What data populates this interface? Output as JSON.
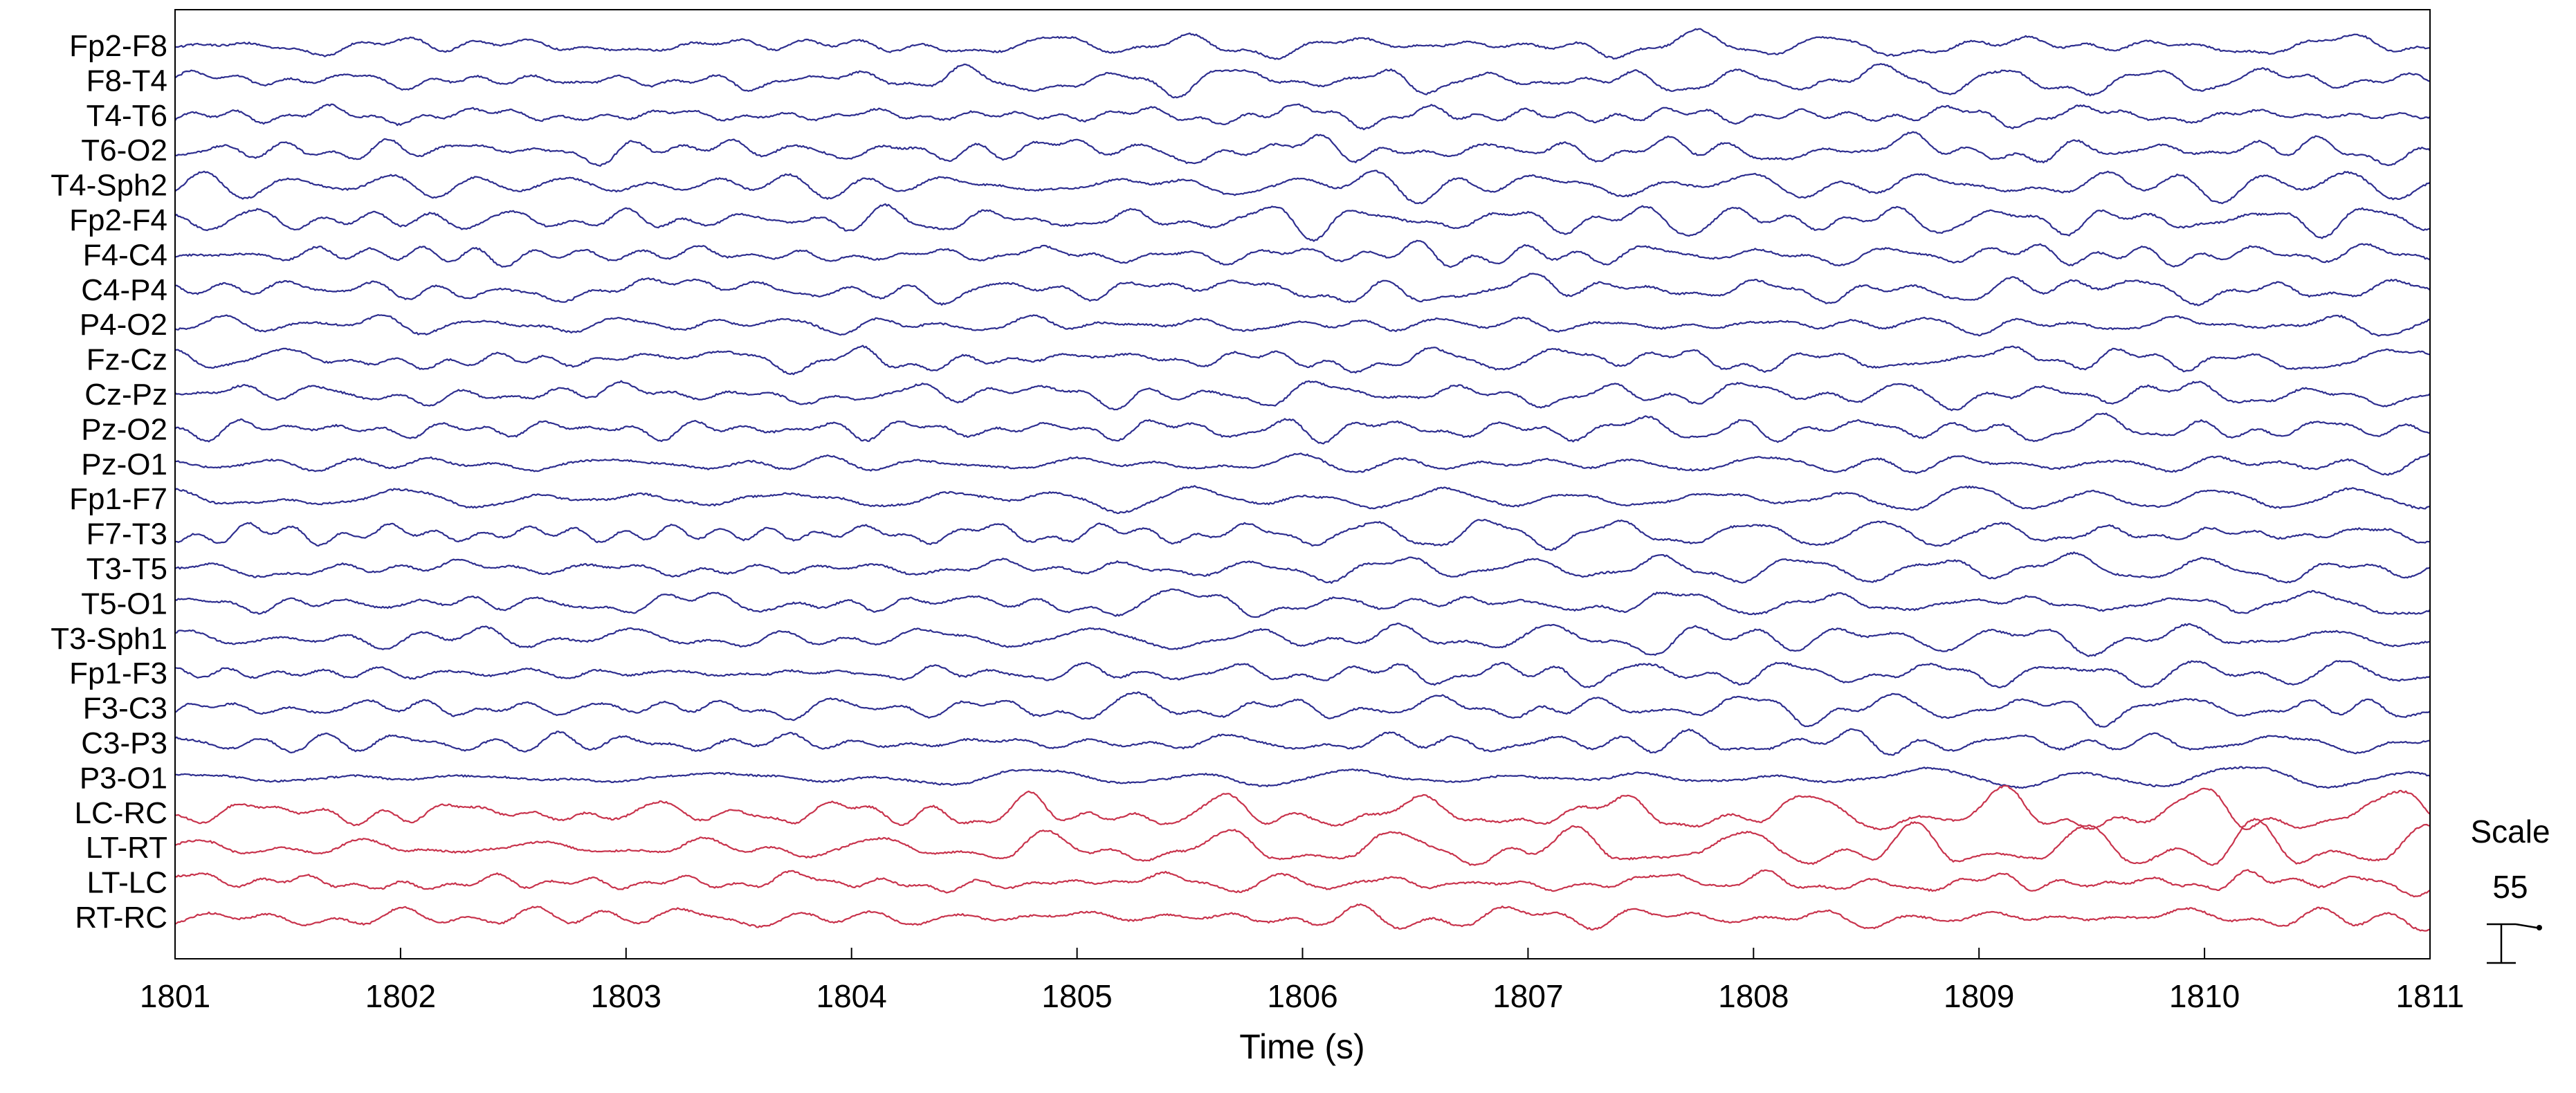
{
  "chart_data": {
    "type": "line",
    "title": "",
    "xlabel": "Time (s)",
    "ylabel": "",
    "xlim": [
      1801,
      1811
    ],
    "x_ticks": [
      "1801",
      "1802",
      "1803",
      "1804",
      "1805",
      "1806",
      "1807",
      "1808",
      "1809",
      "1810",
      "1811"
    ],
    "grid": false,
    "legend": "none",
    "scale": {
      "label": "Scale",
      "value": "55"
    },
    "colors": {
      "eeg": "#2e2e8f",
      "derived": "#c8334c",
      "frame": "#000000"
    },
    "channels": [
      {
        "name": "Fp2-F8",
        "group": "eeg"
      },
      {
        "name": "F8-T4",
        "group": "eeg"
      },
      {
        "name": "T4-T6",
        "group": "eeg"
      },
      {
        "name": "T6-O2",
        "group": "eeg"
      },
      {
        "name": "T4-Sph2",
        "group": "eeg"
      },
      {
        "name": "Fp2-F4",
        "group": "eeg"
      },
      {
        "name": "F4-C4",
        "group": "eeg"
      },
      {
        "name": "C4-P4",
        "group": "eeg"
      },
      {
        "name": "P4-O2",
        "group": "eeg"
      },
      {
        "name": "Fz-Cz",
        "group": "eeg"
      },
      {
        "name": "Cz-Pz",
        "group": "eeg"
      },
      {
        "name": "Pz-O2",
        "group": "eeg"
      },
      {
        "name": "Pz-O1",
        "group": "eeg"
      },
      {
        "name": "Fp1-F7",
        "group": "eeg"
      },
      {
        "name": "F7-T3",
        "group": "eeg"
      },
      {
        "name": "T3-T5",
        "group": "eeg"
      },
      {
        "name": "T5-O1",
        "group": "eeg"
      },
      {
        "name": "T3-Sph1",
        "group": "eeg"
      },
      {
        "name": "Fp1-F3",
        "group": "eeg"
      },
      {
        "name": "F3-C3",
        "group": "eeg"
      },
      {
        "name": "C3-P3",
        "group": "eeg"
      },
      {
        "name": "P3-O1",
        "group": "eeg"
      },
      {
        "name": "LC-RC",
        "group": "derived"
      },
      {
        "name": "LT-RT",
        "group": "derived"
      },
      {
        "name": "LT-LC",
        "group": "derived"
      },
      {
        "name": "RT-RC",
        "group": "derived"
      }
    ]
  }
}
